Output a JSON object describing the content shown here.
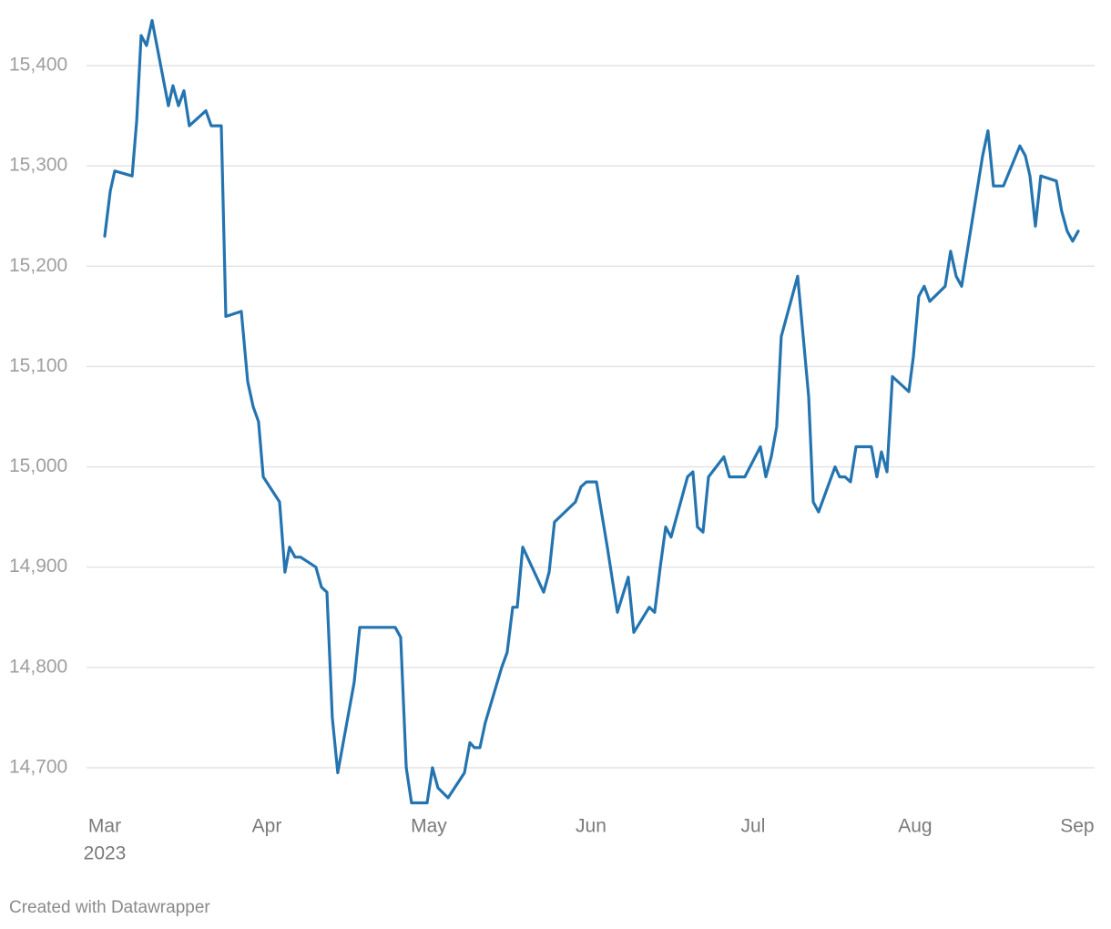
{
  "chart_data": {
    "type": "line",
    "x": [
      3.0,
      3.034,
      3.062,
      3.169,
      3.197,
      3.225,
      3.258,
      3.292,
      3.393,
      3.421,
      3.455,
      3.489,
      3.522,
      3.624,
      3.657,
      3.719,
      3.747,
      3.843,
      3.882,
      3.916,
      3.949,
      3.978,
      4.079,
      4.112,
      4.14,
      4.174,
      4.208,
      4.303,
      4.337,
      4.371,
      4.404,
      4.438,
      4.539,
      4.573,
      4.792,
      4.826,
      4.86,
      4.893,
      4.989,
      5.022,
      5.056,
      5.118,
      5.219,
      5.253,
      5.281,
      5.315,
      5.348,
      5.449,
      5.483,
      5.517,
      5.545,
      5.579,
      5.708,
      5.742,
      5.775,
      5.904,
      5.938,
      5.972,
      6.034,
      6.101,
      6.163,
      6.23,
      6.264,
      6.36,
      6.393,
      6.427,
      6.461,
      6.494,
      6.596,
      6.629,
      6.657,
      6.691,
      6.725,
      6.82,
      6.854,
      6.949,
      7.045,
      7.079,
      7.112,
      7.146,
      7.174,
      7.275,
      7.309,
      7.343,
      7.371,
      7.404,
      7.506,
      7.534,
      7.567,
      7.601,
      7.635,
      7.73,
      7.764,
      7.792,
      7.826,
      7.86,
      7.961,
      7.989,
      8.022,
      8.056,
      8.09,
      8.185,
      8.219,
      8.253,
      8.287,
      8.416,
      8.449,
      8.483,
      8.545,
      8.646,
      8.68,
      8.708,
      8.742,
      8.775,
      8.871,
      8.904,
      8.938,
      8.972,
      9.006
    ],
    "series": [
      {
        "color": "#2474b0",
        "values": [
          15230,
          15275,
          15295,
          15290,
          15345,
          15430,
          15420,
          15445,
          15360,
          15380,
          15360,
          15375,
          15340,
          15355,
          15340,
          15340,
          15150,
          15155,
          15085,
          15060,
          15045,
          14990,
          14965,
          14895,
          14920,
          14910,
          14910,
          14900,
          14880,
          14875,
          14750,
          14695,
          14785,
          14840,
          14840,
          14830,
          14700,
          14665,
          14665,
          14700,
          14680,
          14670,
          14695,
          14725,
          14720,
          14720,
          14745,
          14800,
          14815,
          14860,
          14860,
          14920,
          14875,
          14895,
          14945,
          14965,
          14980,
          14985,
          14985,
          14920,
          14855,
          14890,
          14835,
          14860,
          14855,
          14900,
          14940,
          14930,
          14990,
          14995,
          14940,
          14935,
          14990,
          15010,
          14990,
          14990,
          15020,
          14990,
          15010,
          15040,
          15130,
          15190,
          15130,
          15070,
          14965,
          14955,
          15000,
          14990,
          14990,
          14985,
          15020,
          15020,
          14990,
          15015,
          14995,
          15090,
          15075,
          15110,
          15170,
          15180,
          15165,
          15180,
          15215,
          15190,
          15180,
          15310,
          15335,
          15280,
          15280,
          15320,
          15310,
          15290,
          15240,
          15290,
          15285,
          15255,
          15235,
          15225,
          15235
        ]
      }
    ],
    "xlim": [
      3,
      9.006
    ],
    "xticks": [
      {
        "value": 3,
        "label": "Mar"
      },
      {
        "value": 4,
        "label": "Apr"
      },
      {
        "value": 5,
        "label": "May"
      },
      {
        "value": 6,
        "label": "Jun"
      },
      {
        "value": 7,
        "label": "Jul"
      },
      {
        "value": 8,
        "label": "Aug"
      },
      {
        "value": 9,
        "label": "Sep"
      }
    ],
    "year_label": "2023",
    "ylim": [
      14660,
      15450
    ],
    "yticks": [
      {
        "value": 14700,
        "label": "14,700"
      },
      {
        "value": 14800,
        "label": "14,800"
      },
      {
        "value": 14900,
        "label": "14,900"
      },
      {
        "value": 15000,
        "label": "15,000"
      },
      {
        "value": 15100,
        "label": "15,100"
      },
      {
        "value": 15200,
        "label": "15,200"
      },
      {
        "value": 15300,
        "label": "15,300"
      },
      {
        "value": 15400,
        "label": "15,400"
      }
    ],
    "grid": true,
    "footer": "Created with Datawrapper"
  }
}
